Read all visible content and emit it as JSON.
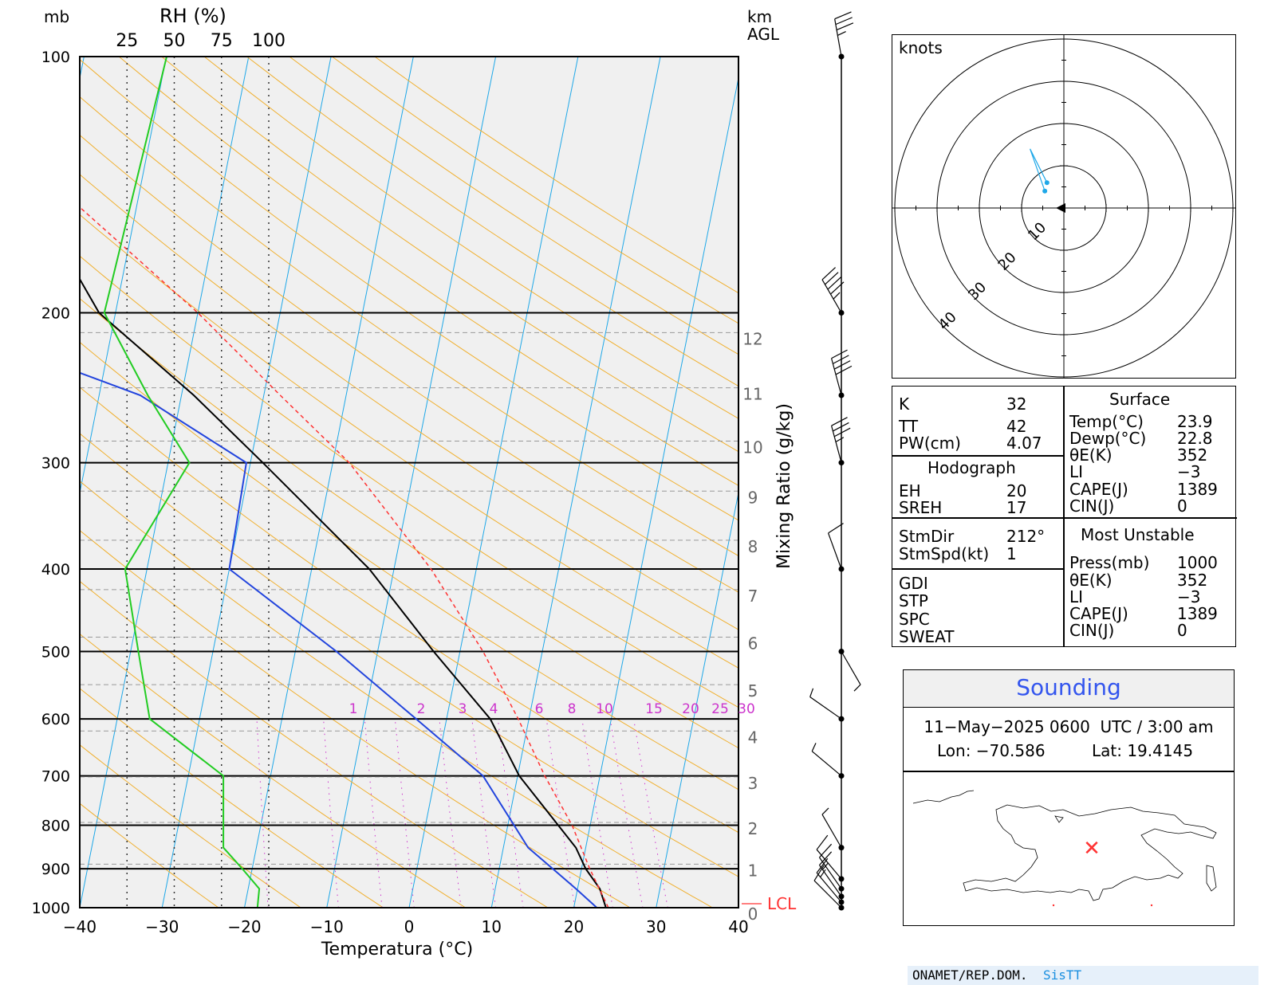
{
  "chart_data": {
    "type": "line",
    "title": "",
    "xlabel": "Temperatura (°C)",
    "ylabel_left_units": "mb",
    "rh_label": "RH (%)",
    "rh_ticks": [
      "25",
      "50",
      "75",
      "100"
    ],
    "height_label": "km AGL",
    "mixing_ratio_label": "Mixing Ratio (g/kg)",
    "xlim": [
      -40,
      40
    ],
    "ylim": [
      1000,
      100
    ],
    "y_scale": "log",
    "skew": true,
    "x_ticks": [
      "−40",
      "−30",
      "−20",
      "−10",
      "0",
      "10",
      "20",
      "30",
      "40"
    ],
    "pressure_ticks": [
      "100",
      "200",
      "300",
      "400",
      "500",
      "600",
      "700",
      "800",
      "900",
      "1000"
    ],
    "height_ticks": [
      "0",
      "1",
      "2",
      "3",
      "4",
      "5",
      "6",
      "7",
      "8",
      "9",
      "10",
      "11",
      "12"
    ],
    "mixing_ratio_ticks": [
      "1",
      "2",
      "3",
      "4",
      "6",
      "8",
      "10",
      "15",
      "20",
      "25",
      "30"
    ],
    "lcl_label": "LCL",
    "lcl_pressure": 987,
    "series": [
      {
        "name": "temperature",
        "color": "#000000",
        "points": [
          [
            1000,
            23.9
          ],
          [
            950,
            22.7
          ],
          [
            900,
            20.5
          ],
          [
            850,
            18.8
          ],
          [
            700,
            10.2
          ],
          [
            600,
            5.3
          ],
          [
            500,
            -3.2
          ],
          [
            400,
            -13.0
          ],
          [
            300,
            -28.5
          ],
          [
            250,
            -38.5
          ],
          [
            200,
            -52.0
          ],
          [
            100,
            -76.0
          ]
        ]
      },
      {
        "name": "dewpoint",
        "color": "#2244dd",
        "points": [
          [
            1000,
            22.8
          ],
          [
            950,
            19.8
          ],
          [
            900,
            16.5
          ],
          [
            850,
            13.0
          ],
          [
            700,
            5.8
          ],
          [
            600,
            -3.7
          ],
          [
            500,
            -15.0
          ],
          [
            400,
            -30.0
          ],
          [
            300,
            -30.5
          ],
          [
            250,
            -45.0
          ],
          [
            200,
            -74.0
          ],
          [
            100,
            -84.0
          ]
        ]
      },
      {
        "name": "parcel",
        "color": "#ff3333",
        "points": [
          [
            1000,
            24.2
          ],
          [
            900,
            21.0
          ],
          [
            800,
            17.8
          ],
          [
            700,
            13.3
          ],
          [
            600,
            8.7
          ],
          [
            500,
            2.8
          ],
          [
            400,
            -5.5
          ],
          [
            300,
            -18.0
          ],
          [
            250,
            -28.0
          ],
          [
            200,
            -40.0
          ],
          [
            150,
            -57.0
          ],
          [
            120,
            -68.0
          ]
        ]
      },
      {
        "name": "relative-humidity",
        "color": "#22cc22",
        "points": [
          [
            1000,
            94
          ],
          [
            950,
            95
          ],
          [
            900,
            86
          ],
          [
            850,
            76
          ],
          [
            800,
            76
          ],
          [
            700,
            76
          ],
          [
            600,
            37
          ],
          [
            500,
            31
          ],
          [
            400,
            24
          ],
          [
            300,
            58
          ],
          [
            250,
            36
          ],
          [
            200,
            13
          ],
          [
            100,
            46
          ]
        ]
      }
    ],
    "wind_barbs": [
      {
        "p": 1000,
        "dir": 315,
        "spd": 10
      },
      {
        "p": 985,
        "dir": 320,
        "spd": 15
      },
      {
        "p": 970,
        "dir": 325,
        "spd": 15
      },
      {
        "p": 950,
        "dir": 325,
        "spd": 10
      },
      {
        "p": 925,
        "dir": 320,
        "spd": 10
      },
      {
        "p": 850,
        "dir": 330,
        "spd": 5
      },
      {
        "p": 700,
        "dir": 310,
        "spd": 5
      },
      {
        "p": 600,
        "dir": 305,
        "spd": 5
      },
      {
        "p": 500,
        "dir": 150,
        "spd": 5
      },
      {
        "p": 400,
        "dir": 340,
        "spd": 10
      },
      {
        "p": 300,
        "dir": 345,
        "spd": 35
      },
      {
        "p": 250,
        "dir": 345,
        "spd": 40
      },
      {
        "p": 200,
        "dir": 330,
        "spd": 45
      },
      {
        "p": 100,
        "dir": 350,
        "spd": 35
      }
    ],
    "hodograph": {
      "units": "knots",
      "ring_labels": [
        "10",
        "20",
        "30",
        "40"
      ],
      "points": [
        [
          -4.5,
          4
        ],
        [
          -8,
          14
        ],
        [
          -4,
          6
        ]
      ]
    }
  },
  "indices": {
    "rows": [
      {
        "label": "K",
        "value": "32"
      },
      {
        "label": "TT",
        "value": "42"
      },
      {
        "label": "PW(cm)",
        "value": "4.07"
      }
    ],
    "hodograph_title": "Hodograph",
    "hodo_rows": [
      {
        "label": "EH",
        "value": "20"
      },
      {
        "label": "SREH",
        "value": "17"
      }
    ],
    "storm_rows": [
      {
        "label": "StmDir",
        "value": "212°"
      },
      {
        "label": "StmSpd(kt)",
        "value": "1"
      }
    ],
    "other_rows": [
      "GDI",
      "STP",
      "SPC",
      "SWEAT"
    ]
  },
  "surface": {
    "title": "Surface",
    "rows": [
      {
        "label": "Temp(°C)",
        "value": "23.9"
      },
      {
        "label": "Dewp(°C)",
        "value": "22.8"
      },
      {
        "label": "θE(K)",
        "value": "352"
      },
      {
        "label": "LI",
        "value": "−3"
      },
      {
        "label": "CAPE(J)",
        "value": "1389"
      },
      {
        "label": "CIN(J)",
        "value": "0"
      }
    ]
  },
  "most_unstable": {
    "title": "Most Unstable",
    "rows": [
      {
        "label": "Press(mb)",
        "value": "1000"
      },
      {
        "label": "θE(K)",
        "value": "352"
      },
      {
        "label": "LI",
        "value": "−3"
      },
      {
        "label": "CAPE(J)",
        "value": "1389"
      },
      {
        "label": "CIN(J)",
        "value": "0"
      }
    ]
  },
  "sounding": {
    "title": "Sounding",
    "datetime": "11−May−2025 0600  UTC / 3:00 am",
    "lon": "Lon: −70.586",
    "lat": "Lat: 19.4145"
  },
  "footer": {
    "org": "ONAMET/REP.DOM.",
    "brand": "SisTT"
  },
  "colors": {
    "temperature": "#000000",
    "dewpoint": "#2244dd",
    "parcel": "#ff3333",
    "rh": "#22cc22",
    "isotherm": "#1fa8e8",
    "dry_adiabat": "#f0b030",
    "mixing_ratio": "#cc33cc",
    "title_blue": "#3355ee"
  }
}
